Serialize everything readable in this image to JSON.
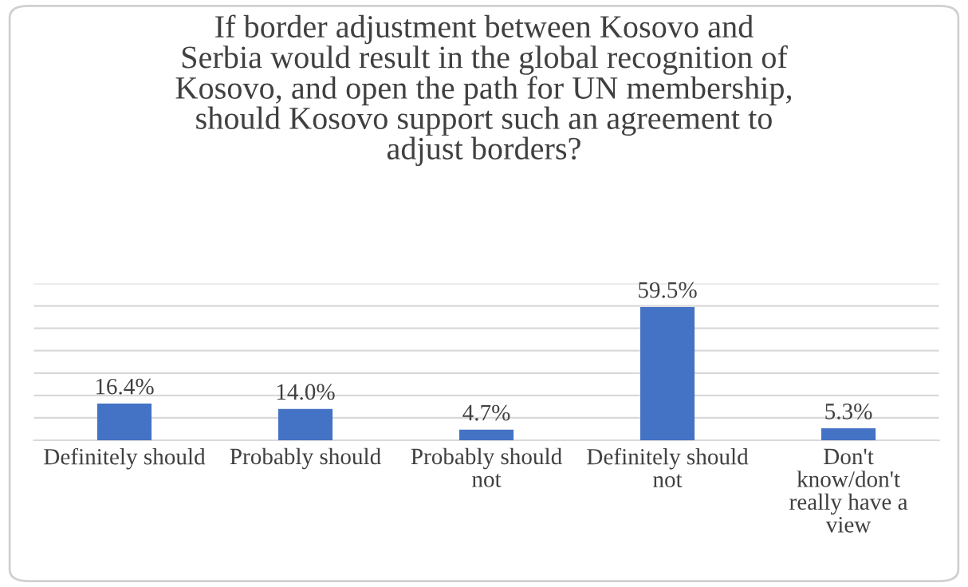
{
  "chart_data": {
    "type": "bar",
    "title": "If border adjustment between Kosovo and\nSerbia would result in the global recognition of\nKosovo, and open the path for UN membership,\nshould Kosovo support such an agreement to\nadjust borders?",
    "categories": [
      "Definitely should",
      "Probably should",
      "Probably should\nnot",
      "Definitely should\nnot",
      "Don't\nknow/don't\nreally have a\nview"
    ],
    "values": [
      16.4,
      14.0,
      4.7,
      59.5,
      5.3
    ],
    "value_labels": [
      "16.4%",
      "14.0%",
      "4.7%",
      "59.5%",
      "5.3%"
    ],
    "color": "#4472c4",
    "ylim": [
      0,
      70
    ],
    "yticks": [
      {
        "value": 0,
        "label": null
      },
      {
        "value": 10,
        "label": null
      },
      {
        "value": 20,
        "label": null
      },
      {
        "value": 30,
        "label": null
      },
      {
        "value": 40,
        "label": null
      },
      {
        "value": 50,
        "label": null
      },
      {
        "value": 60,
        "label": null
      },
      {
        "value": 70,
        "label": null
      }
    ],
    "grid": "y",
    "tick_labels": "x"
  }
}
